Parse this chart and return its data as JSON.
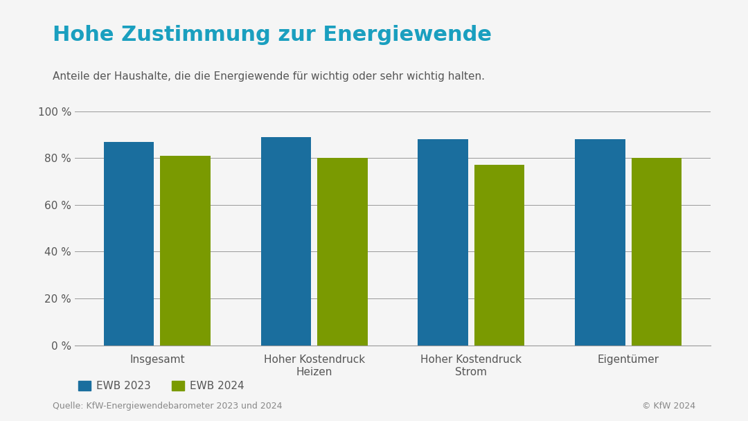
{
  "title": "Hohe Zustimmung zur Energiewende",
  "subtitle": "Anteile der Haushalte, die die Energiewende für wichtig oder sehr wichtig halten.",
  "categories": [
    "Insgesamt",
    "Hoher Kostendruck\nHeizen",
    "Hoher Kostendruck\nStrom",
    "Eigentümer"
  ],
  "ewb2023": [
    87,
    89,
    88,
    88
  ],
  "ewb2024": [
    81,
    80,
    77,
    80
  ],
  "color_2023": "#1a6e9e",
  "color_2024": "#7a9a01",
  "ylabel_ticks": [
    0,
    20,
    40,
    60,
    80,
    100
  ],
  "ylim": [
    0,
    108
  ],
  "source_left": "Quelle: KfW-Energiewendebarometer 2023 und 2024",
  "source_right": "© KfW 2024",
  "legend_label_2023": "EWB 2023",
  "legend_label_2024": "EWB 2024",
  "title_color": "#1a9fbf",
  "subtitle_color": "#555555",
  "axis_color": "#999999",
  "tick_label_color": "#555555",
  "source_color": "#888888",
  "background_color": "#f5f5f5"
}
